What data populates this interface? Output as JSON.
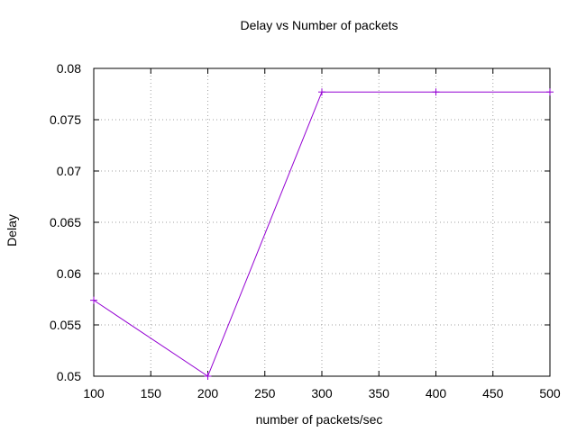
{
  "chart_data": {
    "type": "line",
    "title": "Delay vs Number of packets",
    "xlabel": "number of packets/sec",
    "ylabel": "Delay",
    "xlim": [
      100,
      500
    ],
    "ylim": [
      0.05,
      0.08
    ],
    "x_ticks": [
      "100",
      "150",
      "200",
      "250",
      "300",
      "350",
      "400",
      "450",
      "500"
    ],
    "y_ticks": [
      "0.05",
      "0.055",
      "0.06",
      "0.065",
      "0.07",
      "0.075",
      "0.08"
    ],
    "grid": true,
    "legend": "none",
    "series": [
      {
        "color": "#9400d3",
        "marker": "plus",
        "x": [
          100,
          200,
          300,
          400,
          500
        ],
        "y": [
          0.0574,
          0.05,
          0.0777,
          0.0777,
          0.0777
        ]
      }
    ]
  }
}
